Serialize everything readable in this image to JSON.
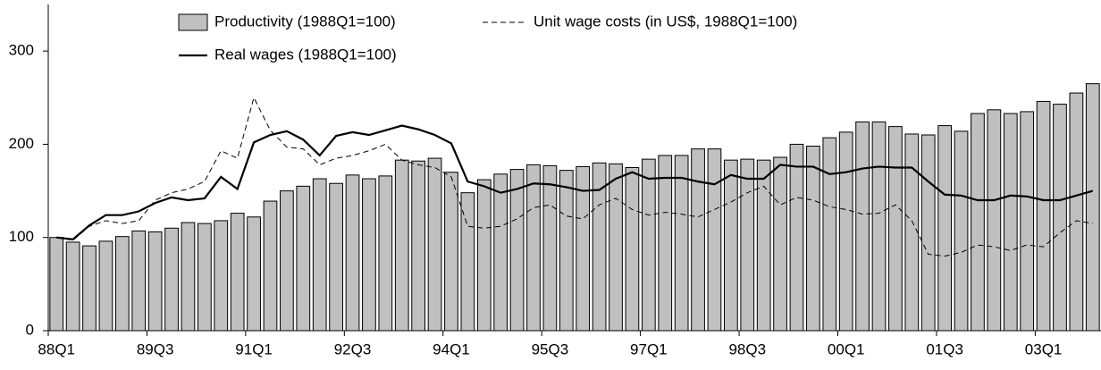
{
  "chart_data": {
    "type": "bar",
    "categories": [
      "88Q1",
      null,
      null,
      null,
      null,
      null,
      "89Q3",
      null,
      null,
      null,
      null,
      null,
      "91Q1",
      null,
      null,
      null,
      null,
      null,
      "92Q3",
      null,
      null,
      null,
      null,
      null,
      "94Q1",
      null,
      null,
      null,
      null,
      null,
      "95Q3",
      null,
      null,
      null,
      null,
      null,
      "97Q1",
      null,
      null,
      null,
      null,
      null,
      "98Q3",
      null,
      null,
      null,
      null,
      null,
      "00Q1",
      null,
      null,
      null,
      null,
      null,
      "01Q3",
      null,
      null,
      null,
      null,
      null,
      "03Q1",
      null,
      null,
      null
    ],
    "series": [
      {
        "name": "Productivity (1988Q1=100)",
        "kind": "bar",
        "color": "#c0c0c0",
        "values": [
          100,
          95,
          91,
          96,
          101,
          107,
          106,
          110,
          116,
          115,
          118,
          126,
          122,
          139,
          150,
          155,
          163,
          158,
          167,
          163,
          166,
          183,
          182,
          185,
          170,
          148,
          162,
          168,
          173,
          178,
          177,
          172,
          176,
          180,
          179,
          175,
          184,
          188,
          188,
          195,
          195,
          183,
          184,
          183,
          186,
          200,
          198,
          207,
          213,
          224,
          224,
          219,
          211,
          210,
          220,
          214,
          233,
          237,
          233,
          235,
          246,
          243,
          255,
          265
        ]
      },
      {
        "name": "Unit wage costs (in US$, 1988Q1=100)",
        "kind": "dashed",
        "color": "#000000",
        "values": [
          100,
          97,
          112,
          118,
          115,
          118,
          140,
          148,
          152,
          160,
          193,
          185,
          250,
          215,
          197,
          195,
          178,
          185,
          188,
          193,
          200,
          183,
          178,
          175,
          165,
          112,
          110,
          112,
          120,
          132,
          135,
          123,
          120,
          135,
          142,
          130,
          124,
          127,
          125,
          122,
          130,
          138,
          148,
          155,
          135,
          143,
          140,
          133,
          130,
          125,
          126,
          135,
          118,
          82,
          80,
          84,
          92,
          90,
          86,
          92,
          90,
          105,
          118,
          115
        ]
      },
      {
        "name": "Real wages (1988Q1=100)",
        "kind": "solid",
        "color": "#000000",
        "values": [
          100,
          98,
          113,
          124,
          124,
          128,
          137,
          143,
          140,
          142,
          165,
          152,
          202,
          210,
          214,
          205,
          188,
          209,
          213,
          210,
          215,
          220,
          216,
          210,
          201,
          160,
          155,
          148,
          152,
          158,
          157,
          154,
          150,
          151,
          163,
          170,
          163,
          164,
          164,
          160,
          157,
          167,
          163,
          163,
          178,
          176,
          176,
          168,
          170,
          174,
          176,
          175,
          175,
          160,
          146,
          145,
          140,
          140,
          145,
          144,
          140,
          140,
          145,
          150
        ]
      }
    ],
    "ylim": [
      0,
      350
    ],
    "yticks": [
      0,
      100,
      200,
      300
    ]
  }
}
